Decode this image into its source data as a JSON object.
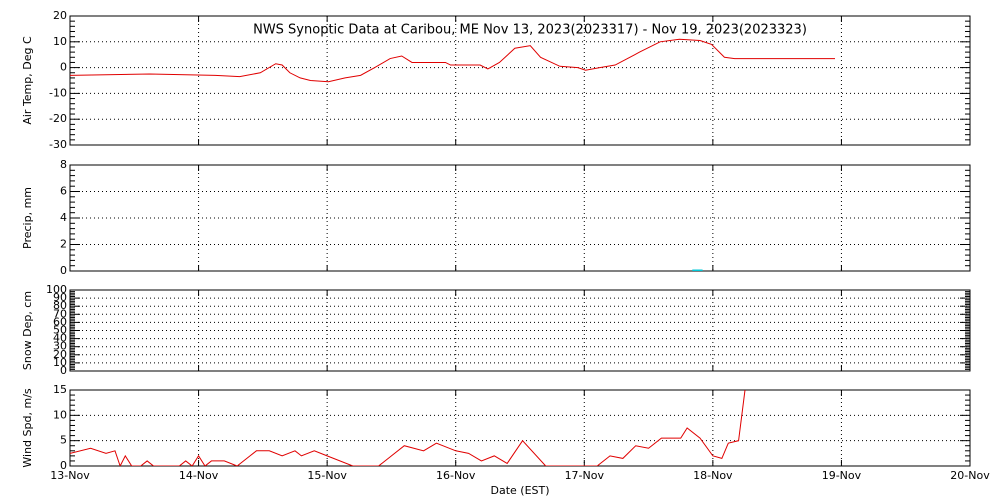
{
  "chart_data": [
    {
      "type": "line",
      "title": "NWS Synoptic Data at Caribou, ME   Nov 13, 2023(2023317) - Nov 19, 2023(2023323)",
      "ylabel": "Air Temp, Deg C",
      "xlim": [
        0,
        7
      ],
      "ylim": [
        -30,
        20
      ],
      "yticks": [
        -30,
        -20,
        -10,
        0,
        10,
        20
      ],
      "grid": true,
      "series": [
        {
          "name": "Air Temp",
          "color": "#e00000",
          "x": [
            0,
            0.62,
            1.13,
            1.32,
            1.48,
            1.6,
            1.65,
            1.71,
            1.79,
            1.87,
            2.01,
            2.14,
            2.26,
            2.37,
            2.49,
            2.58,
            2.66,
            2.92,
            2.96,
            3.19,
            3.25,
            3.34,
            3.46,
            3.58,
            3.66,
            3.81,
            3.95,
            4.01,
            4.12,
            4.24,
            4.43,
            4.59,
            4.74,
            4.9,
            4.99,
            5.09,
            5.17,
            5.95
          ],
          "values": [
            -3,
            -2.5,
            -3,
            -3.5,
            -2,
            1.5,
            1,
            -2,
            -4,
            -5,
            -5.5,
            -4,
            -3,
            0,
            3.5,
            4.5,
            2,
            2,
            1,
            1,
            -0.5,
            2,
            7.5,
            8.5,
            4,
            0.5,
            0,
            -1,
            0,
            1,
            6,
            10,
            11,
            10.5,
            9,
            4,
            3.5,
            3.5
          ]
        }
      ]
    },
    {
      "type": "line",
      "ylabel": "Precip, mm",
      "xlim": [
        0,
        7
      ],
      "ylim": [
        0,
        8
      ],
      "yticks": [
        0,
        2,
        4,
        6,
        8
      ],
      "grid": true,
      "series": [
        {
          "name": "Precip",
          "color": "#00c8d8",
          "x": [
            4.84,
            4.92
          ],
          "values": [
            0,
            0
          ]
        }
      ]
    },
    {
      "type": "line",
      "ylabel": "Snow Dep, cm",
      "xlim": [
        0,
        7
      ],
      "ylim": [
        0,
        100
      ],
      "yticks": [
        0,
        10,
        20,
        30,
        40,
        50,
        60,
        70,
        80,
        90,
        100
      ],
      "grid": true,
      "series": []
    },
    {
      "type": "line",
      "ylabel": "Wind Spd, m/s",
      "xlabel": "Date (EST)",
      "xlim": [
        0,
        7
      ],
      "ylim": [
        0,
        15
      ],
      "yticks": [
        0,
        5,
        10,
        15
      ],
      "grid": true,
      "xticks": [
        {
          "value": 0,
          "label": "13-Nov"
        },
        {
          "value": 1,
          "label": "14-Nov"
        },
        {
          "value": 2,
          "label": "15-Nov"
        },
        {
          "value": 3,
          "label": "16-Nov"
        },
        {
          "value": 4,
          "label": "17-Nov"
        },
        {
          "value": 5,
          "label": "18-Nov"
        },
        {
          "value": 6,
          "label": "19-Nov"
        },
        {
          "value": 7,
          "label": "20-Nov"
        }
      ],
      "series": [
        {
          "name": "Wind Spd",
          "color": "#e00000",
          "x": [
            0,
            0.16,
            0.28,
            0.35,
            0.39,
            0.43,
            0.48,
            0.55,
            0.6,
            0.65,
            0.85,
            0.9,
            0.95,
            1.0,
            1.05,
            1.1,
            1.2,
            1.3,
            1.4,
            1.45,
            1.55,
            1.65,
            1.75,
            1.8,
            1.9,
            2.0,
            2.2,
            2.4,
            2.5,
            2.6,
            2.75,
            2.85,
            3.0,
            3.1,
            3.2,
            3.3,
            3.4,
            3.52,
            3.7,
            4.1,
            4.2,
            4.3,
            4.4,
            4.5,
            4.6,
            4.7,
            4.75,
            4.8,
            4.9,
            5.0,
            5.07,
            5.12,
            5.2,
            5.25
          ],
          "values": [
            2.5,
            3.5,
            2.5,
            3,
            0,
            2,
            0,
            0,
            1,
            0,
            0,
            1,
            0,
            2,
            0,
            1,
            1,
            0,
            2,
            3,
            3,
            2,
            3,
            2,
            3,
            2,
            0,
            0,
            2,
            4,
            3,
            4.5,
            3,
            2.5,
            1,
            2,
            0.5,
            5,
            0,
            0,
            2,
            1.5,
            4,
            3.5,
            5.5,
            5.5,
            5.5,
            7.5,
            5.5,
            2,
            1.5,
            4.5,
            5,
            15
          ]
        }
      ]
    }
  ]
}
